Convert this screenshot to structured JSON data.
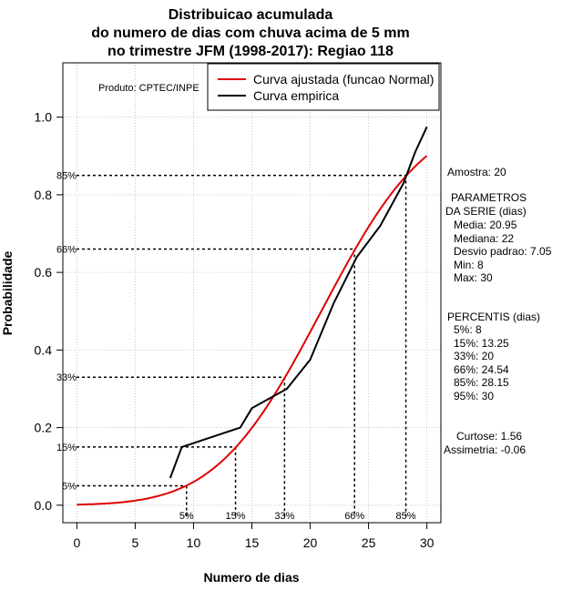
{
  "chart_data": {
    "type": "line",
    "title": [
      "Distribuicao acumulada",
      "do numero de dias com chuva acima de 5 mm",
      "no trimestre JFM (1998-2017): Regiao 118"
    ],
    "xlabel": "Numero de dias",
    "ylabel": "Probabilidade",
    "xlim": [
      -1.2,
      31.2
    ],
    "ylim": [
      -0.045,
      1.14
    ],
    "xticks": [
      0,
      5,
      10,
      15,
      20,
      25,
      30
    ],
    "yticks": [
      0.0,
      0.2,
      0.4,
      0.6,
      0.8,
      1.0
    ],
    "ytick_labels": [
      "0.0",
      "0.2",
      "0.4",
      "0.6",
      "0.8",
      "1.0"
    ],
    "grid": true,
    "producer": "Produto: CPTEC/INPE",
    "legend": {
      "placement": "top-right",
      "entries": [
        {
          "label": "Curva ajustada (funcao Normal)",
          "color": "#e00000"
        },
        {
          "label": "Curva empirica",
          "color": "#000000"
        }
      ]
    },
    "series": [
      {
        "name": "Curva ajustada (funcao Normal)",
        "color": "#e00000",
        "dist": "normal",
        "mean": 20.95,
        "sd": 7.05,
        "x_range": [
          0,
          30
        ]
      },
      {
        "name": "Curva empirica",
        "color": "#000000",
        "x": [
          8,
          9,
          14,
          15,
          18,
          20,
          22,
          24,
          26,
          28,
          29,
          30
        ],
        "y": [
          0.07,
          0.15,
          0.2,
          0.25,
          0.3,
          0.375,
          0.52,
          0.64,
          0.72,
          0.83,
          0.91,
          0.975
        ]
      }
    ],
    "percentile_markers": [
      {
        "label": "5%",
        "x": 9.4,
        "p": 0.05
      },
      {
        "label": "15%",
        "x": 13.6,
        "p": 0.15
      },
      {
        "label": "33%",
        "x": 17.8,
        "p": 0.33
      },
      {
        "label": "66%",
        "x": 23.8,
        "p": 0.66
      },
      {
        "label": "85%",
        "x": 28.2,
        "p": 0.85
      }
    ],
    "side_panel": {
      "amostra": "Amostra: 20",
      "params_title": [
        "PARAMETROS",
        "DA SERIE (dias)"
      ],
      "params": [
        "Media: 20.95",
        "Mediana: 22",
        "Desvio padrao: 7.05",
        "Min: 8",
        "Max: 30"
      ],
      "percentis_title": "PERCENTIS (dias)",
      "percentis": [
        "5%: 8",
        "15%: 13.25",
        "33%: 20",
        "66%: 24.54",
        "85%: 28.15",
        "95%: 30"
      ],
      "curtose": "Curtose: 1.56",
      "assimetria": "Assimetria: -0.06"
    }
  }
}
